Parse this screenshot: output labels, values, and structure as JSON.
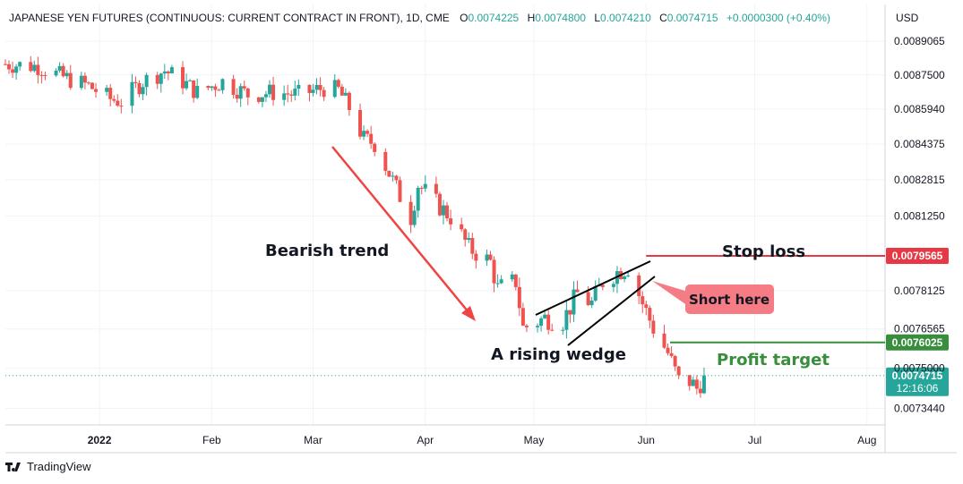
{
  "header": {
    "symbol": "JAPANESE YEN FUTURES (CONTINUOUS: CURRENT CONTRACT IN FRONT), 1D, CME",
    "open_label": "O",
    "open": "0.0074225",
    "high_label": "H",
    "high": "0.0074800",
    "low_label": "L",
    "low": "0.0074210",
    "close_label": "C",
    "close": "0.0074715",
    "change": "+0.0000300 (+0.40%)"
  },
  "currency": "USD",
  "footer": {
    "brand": "TradingView"
  },
  "colors": {
    "up": "#26a69a",
    "down": "#ef5350",
    "stop_line": "#e53946",
    "target_line": "#388e3c",
    "arrow": "#ef4444",
    "short_callout": "#f57c84",
    "last_price": "#26a69a"
  },
  "chart_data": {
    "type": "candlestick",
    "y_scale": "log",
    "ylim": [
      0.00728,
      0.00908
    ],
    "y_ticks": [
      "0.0089065",
      "0.0087500",
      "0.0085940",
      "0.0084375",
      "0.0082815",
      "0.0081250",
      "0.0079565",
      "0.0078125",
      "0.0076565",
      "0.0076025",
      "0.0075000",
      "0.0074715",
      "0.0073440"
    ],
    "y_tick_values": [
      0.0089065,
      0.00875,
      0.008594,
      0.0084375,
      0.0082815,
      0.008125,
      0.0079565,
      0.0078125,
      0.0076565,
      0.0076025,
      0.0075,
      0.0074715,
      0.007344
    ],
    "x_range": [
      "2021-12-06",
      "2022-08-06"
    ],
    "x_ticks": [
      {
        "label": "2022",
        "date": "2022-01-01"
      },
      {
        "label": "Feb",
        "date": "2022-02-01"
      },
      {
        "label": "Mar",
        "date": "2022-03-01"
      },
      {
        "label": "Apr",
        "date": "2022-04-01"
      },
      {
        "label": "May",
        "date": "2022-05-01"
      },
      {
        "label": "Jun",
        "date": "2022-06-01"
      },
      {
        "label": "Jul",
        "date": "2022-07-01"
      },
      {
        "label": "Aug",
        "date": "2022-08-01"
      }
    ],
    "closes": [
      {
        "date": "2021-12-06",
        "close": 0.0088
      },
      {
        "date": "2021-12-15",
        "close": 0.00879
      },
      {
        "date": "2021-12-22",
        "close": 0.00874
      },
      {
        "date": "2021-12-29",
        "close": 0.0087
      },
      {
        "date": "2022-01-04",
        "close": 0.00864
      },
      {
        "date": "2022-01-07",
        "close": 0.00863
      },
      {
        "date": "2022-01-13",
        "close": 0.00872
      },
      {
        "date": "2022-01-19",
        "close": 0.00877
      },
      {
        "date": "2022-01-24",
        "close": 0.00872
      },
      {
        "date": "2022-01-28",
        "close": 0.00867
      },
      {
        "date": "2022-02-04",
        "close": 0.00872
      },
      {
        "date": "2022-02-11",
        "close": 0.00866
      },
      {
        "date": "2022-02-18",
        "close": 0.00867
      },
      {
        "date": "2022-02-25",
        "close": 0.00866
      },
      {
        "date": "2022-03-04",
        "close": 0.00869
      },
      {
        "date": "2022-03-08",
        "close": 0.00868
      },
      {
        "date": "2022-03-11",
        "close": 0.0086
      },
      {
        "date": "2022-03-15",
        "close": 0.00846
      },
      {
        "date": "2022-03-18",
        "close": 0.00844
      },
      {
        "date": "2022-03-22",
        "close": 0.00831
      },
      {
        "date": "2022-03-25",
        "close": 0.00821
      },
      {
        "date": "2022-03-28",
        "close": 0.00812
      },
      {
        "date": "2022-03-30",
        "close": 0.00826
      },
      {
        "date": "2022-04-04",
        "close": 0.00818
      },
      {
        "date": "2022-04-08",
        "close": 0.00812
      },
      {
        "date": "2022-04-13",
        "close": 0.00799
      },
      {
        "date": "2022-04-19",
        "close": 0.00793
      },
      {
        "date": "2022-04-21",
        "close": 0.00782
      },
      {
        "date": "2022-04-26",
        "close": 0.00785
      },
      {
        "date": "2022-04-28",
        "close": 0.00766
      },
      {
        "date": "2022-05-04",
        "close": 0.0077
      },
      {
        "date": "2022-05-09",
        "close": 0.00769
      },
      {
        "date": "2022-05-13",
        "close": 0.0078
      },
      {
        "date": "2022-05-17",
        "close": 0.00776
      },
      {
        "date": "2022-05-20",
        "close": 0.00785
      },
      {
        "date": "2022-05-24",
        "close": 0.00789
      },
      {
        "date": "2022-05-27",
        "close": 0.00791
      },
      {
        "date": "2022-05-31",
        "close": 0.00776
      },
      {
        "date": "2022-06-03",
        "close": 0.00766
      },
      {
        "date": "2022-06-07",
        "close": 0.00756
      },
      {
        "date": "2022-06-10",
        "close": 0.00745
      },
      {
        "date": "2022-06-13",
        "close": 0.00745
      },
      {
        "date": "2022-06-15",
        "close": 0.00742
      },
      {
        "date": "2022-06-17",
        "close": 0.007472
      }
    ],
    "levels": {
      "stop_loss": {
        "label": "Stop loss",
        "value": "0.0079565"
      },
      "profit_target": {
        "label": "Profit target",
        "value": "0.0076025"
      },
      "last_price": {
        "value": "0.0074715",
        "countdown": "12:16:06"
      }
    },
    "annotations": {
      "bearish_trend": "Bearish trend",
      "rising_wedge": "A rising wedge",
      "short_here": "Short here"
    }
  }
}
